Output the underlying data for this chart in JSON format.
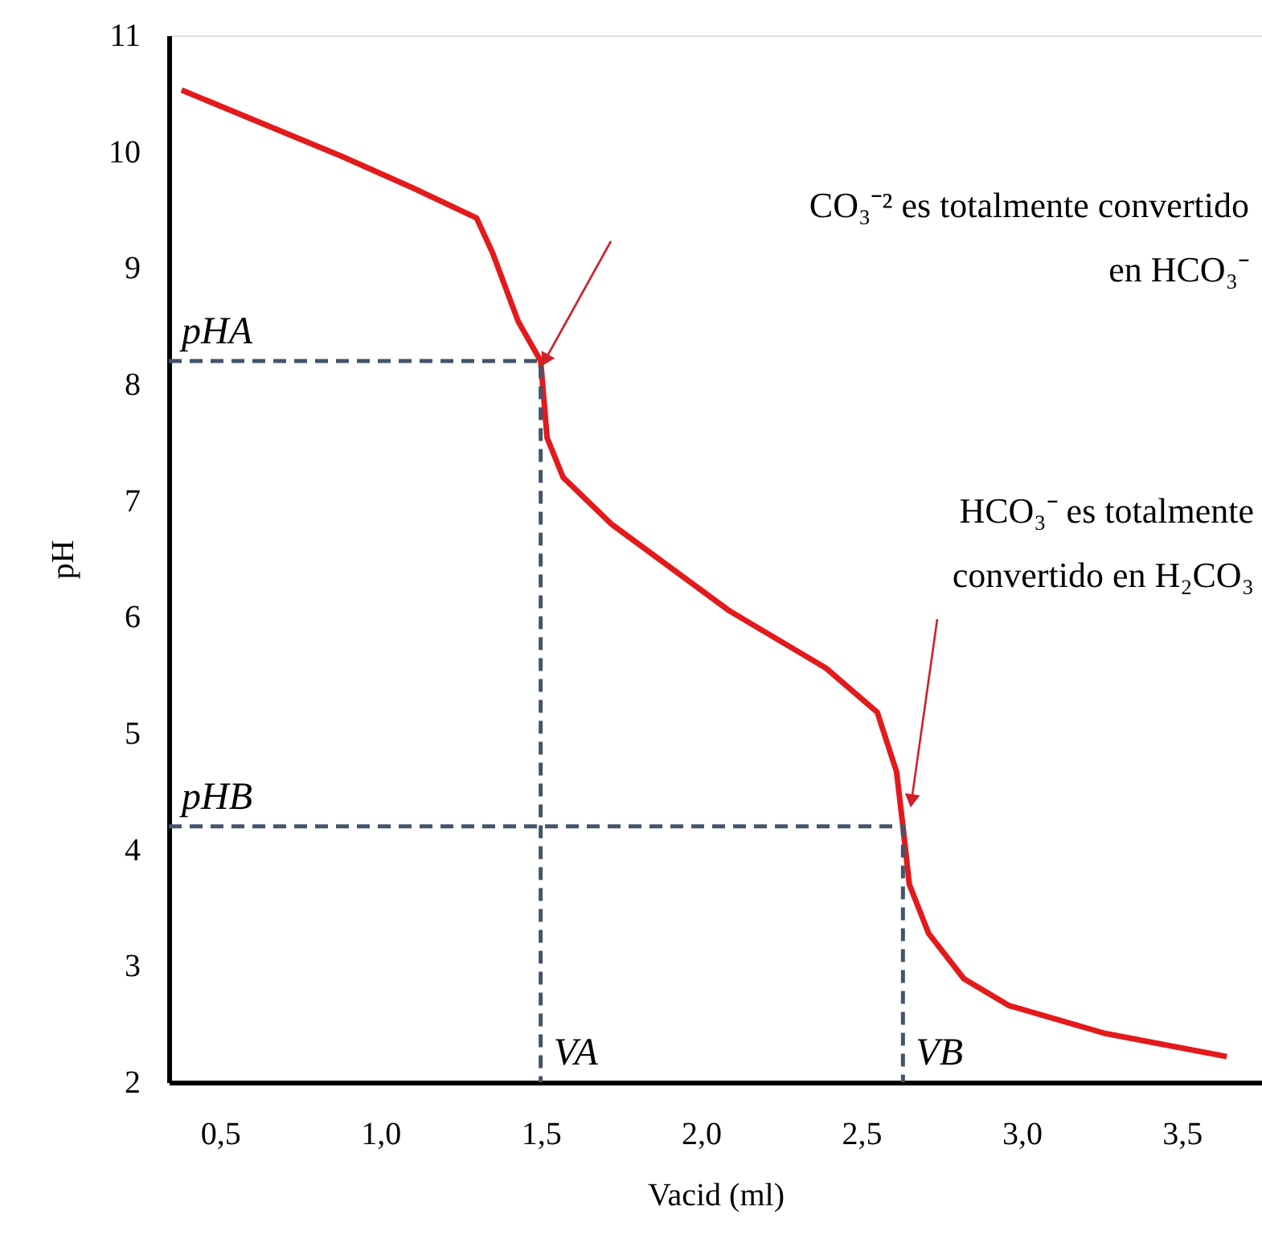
{
  "chart_data": {
    "type": "line",
    "xlabel": "Vacid (ml)",
    "ylabel": "pH",
    "xlim": [
      0.34,
      3.75
    ],
    "ylim": [
      2,
      11
    ],
    "xticks": [
      {
        "value": 0.5,
        "label": "0,5"
      },
      {
        "value": 1.0,
        "label": "1,0"
      },
      {
        "value": 1.5,
        "label": "1,5"
      },
      {
        "value": 2.0,
        "label": "2,0"
      },
      {
        "value": 2.5,
        "label": "2,5"
      },
      {
        "value": 3.0,
        "label": "3,0"
      },
      {
        "value": 3.5,
        "label": "3,5"
      }
    ],
    "yticks": [
      2,
      3,
      4,
      5,
      6,
      7,
      8,
      9,
      10,
      11
    ],
    "grid": false,
    "marker": "none",
    "line_style": "solid",
    "series": [
      {
        "color": "#e31a1c",
        "x": [
          0.38,
          0.88,
          1.1,
          1.3,
          1.35,
          1.43,
          1.5,
          1.52,
          1.57,
          1.72,
          2.09,
          2.39,
          2.55,
          2.61,
          2.63,
          2.65,
          2.71,
          2.82,
          2.96,
          3.26,
          3.64
        ],
        "values": [
          10.53,
          9.96,
          9.69,
          9.43,
          9.13,
          8.54,
          8.2,
          7.54,
          7.2,
          6.8,
          6.05,
          5.56,
          5.18,
          4.67,
          4.2,
          3.7,
          3.28,
          2.89,
          2.66,
          2.42,
          2.22
        ]
      },
      {
        "color": "#44546a",
        "line_style": "dashed",
        "x": [
          0.34,
          1.5,
          1.5
        ],
        "values": [
          8.2,
          8.2,
          2
        ]
      },
      {
        "color": "#44546a",
        "line_style": "dashed",
        "x": [
          0.34,
          2.63,
          2.63
        ],
        "values": [
          4.2,
          4.2,
          2
        ]
      }
    ],
    "annotations": [
      {
        "text": "pHA",
        "x": 0.34,
        "y": 8.2
      },
      {
        "text": "pHB",
        "x": 0.34,
        "y": 4.2
      },
      {
        "text": "VA",
        "x": 1.5,
        "y": 2
      },
      {
        "text": "VB",
        "x": 2.63,
        "y": 2
      },
      "CO₃⁻² es totalmente convertido\nen HCO₃⁻",
      "HCO₃⁻ es totalmente\nconvertido en H₂CO₃"
    ]
  }
}
